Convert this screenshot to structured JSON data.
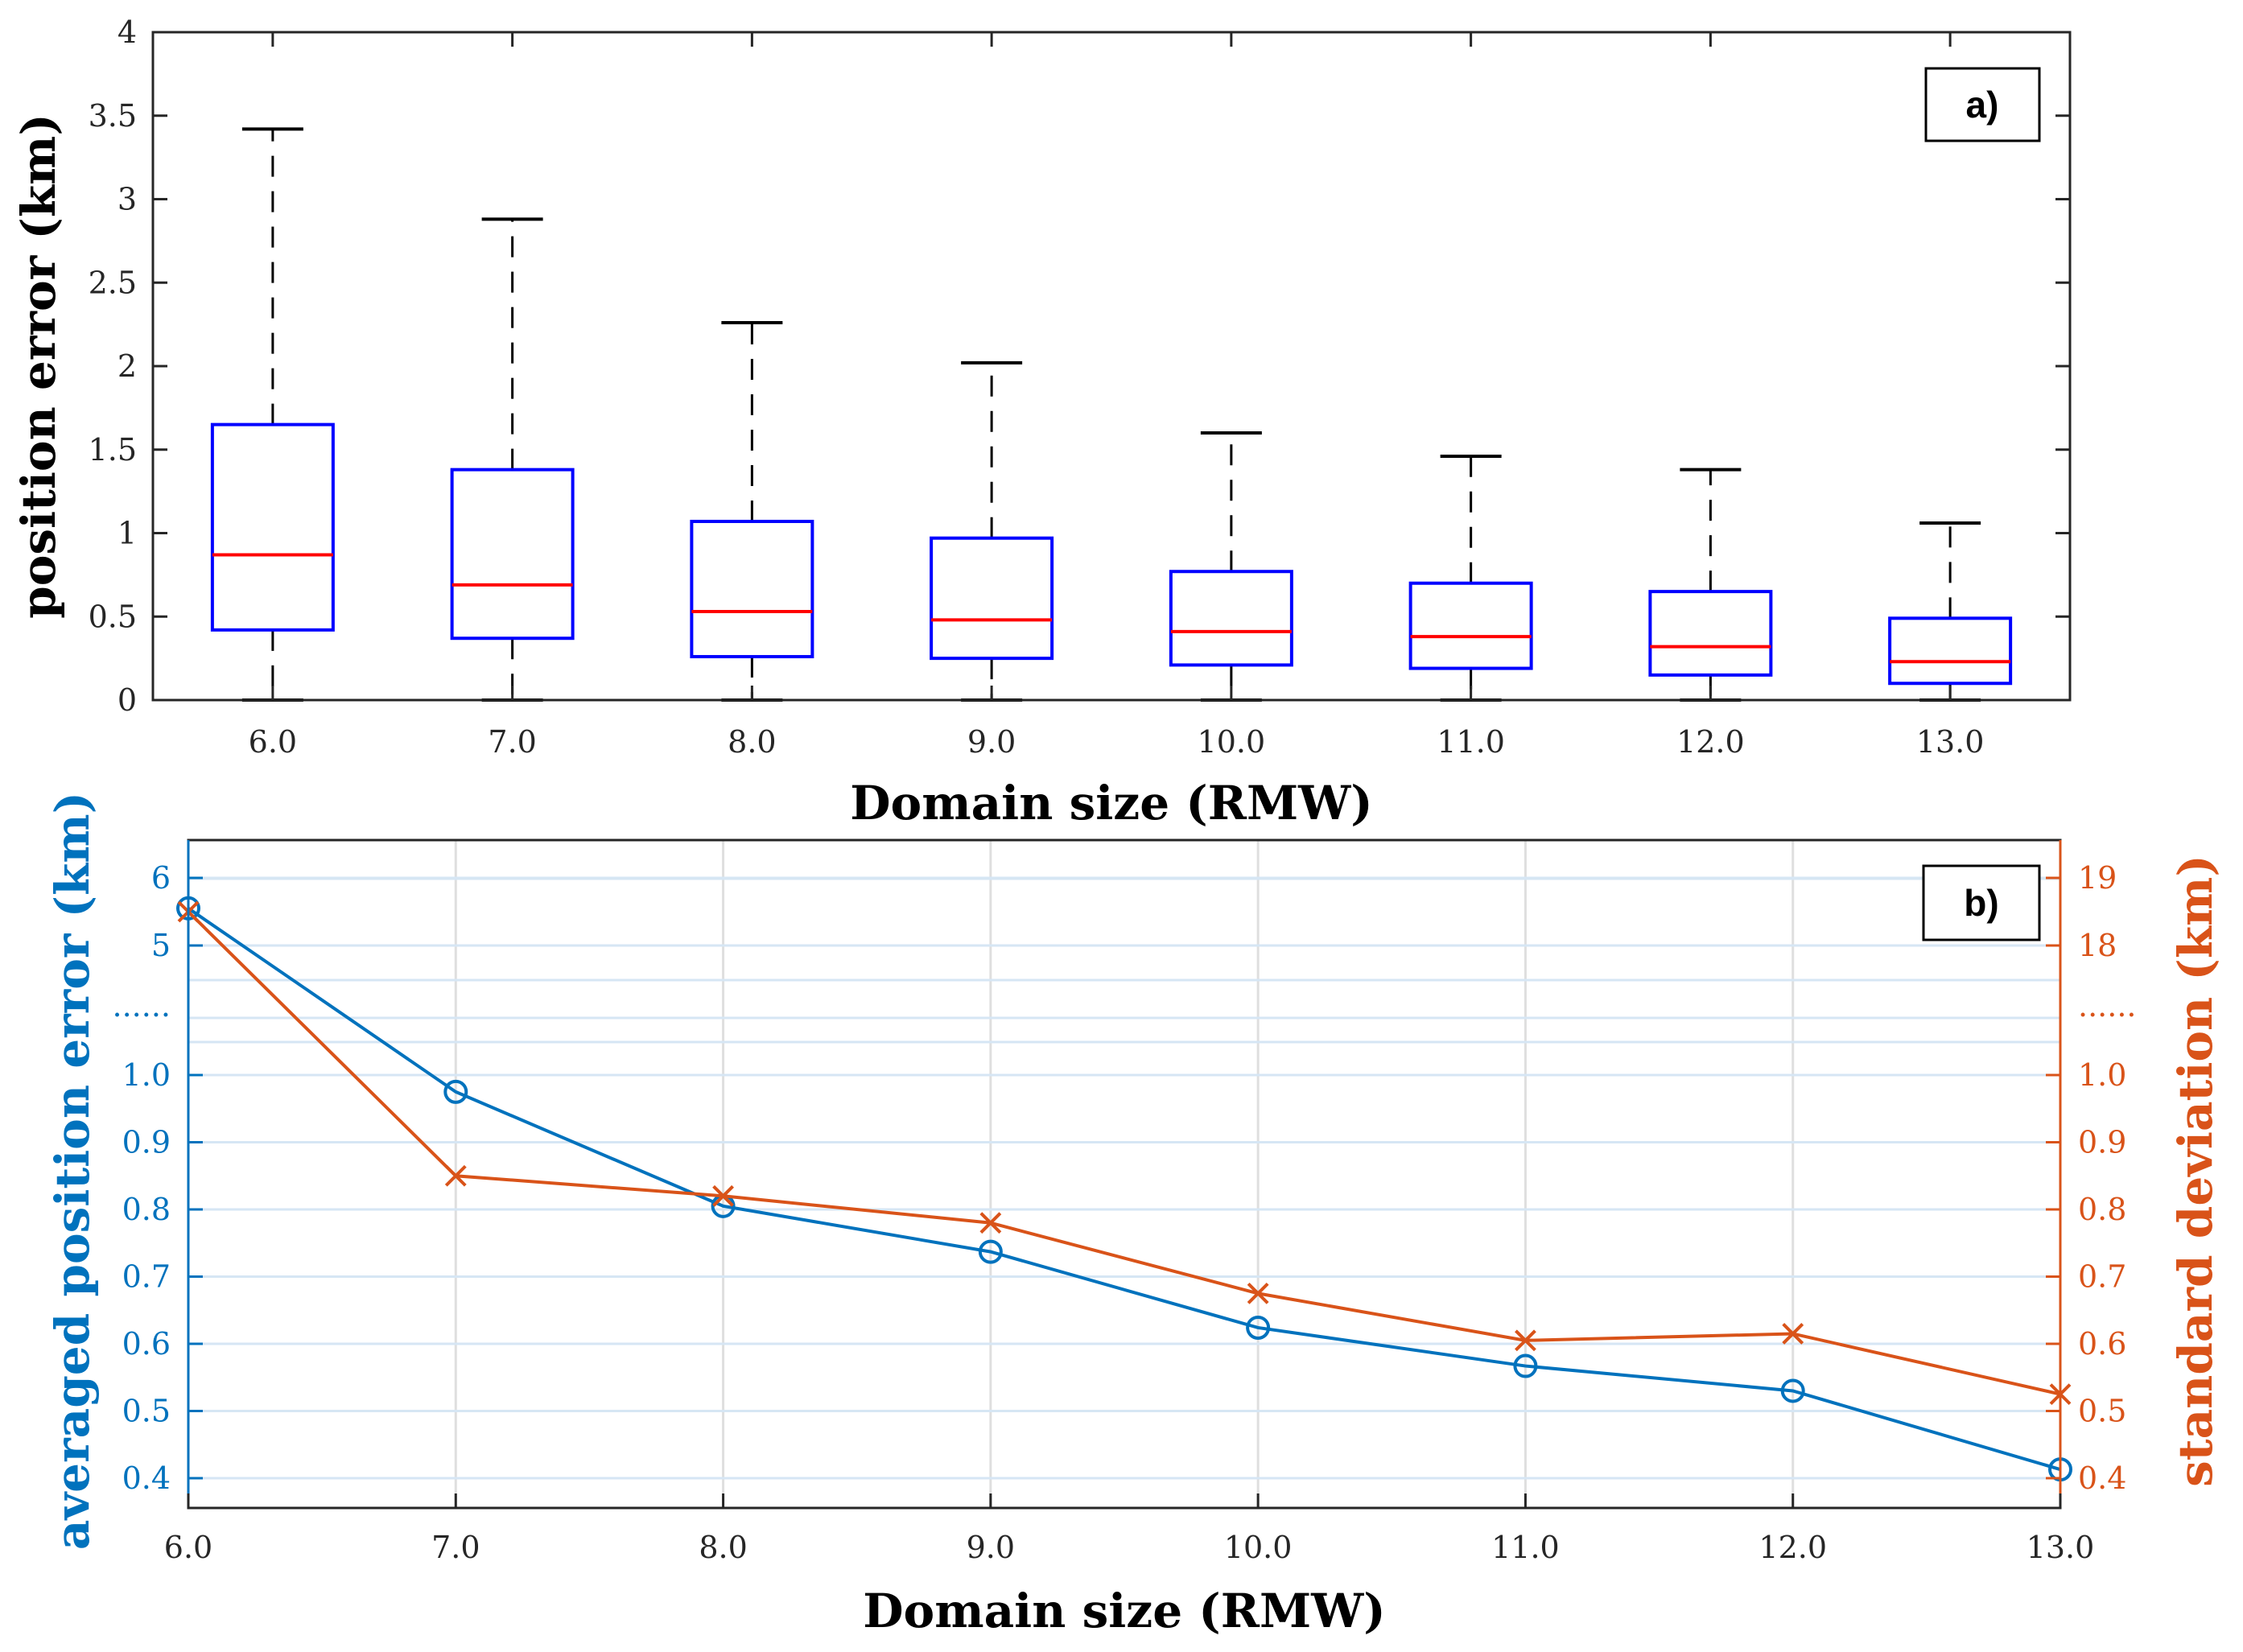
{
  "colors": {
    "axis": "#262626",
    "box": "#0000ff",
    "median": "#ff0000",
    "whisker": "#000000",
    "blue": "#0072bd",
    "orange": "#d95319",
    "grid": "#dfdfdf"
  },
  "chart_data": [
    {
      "type": "box",
      "panel_label": "a)",
      "xlabel": "Domain size (RMW)",
      "ylabel": "position error (km)",
      "categories": [
        "6.0",
        "7.0",
        "8.0",
        "9.0",
        "10.0",
        "11.0",
        "12.0",
        "13.0"
      ],
      "ylim": [
        0,
        4
      ],
      "yticks": [
        "0",
        "0.5",
        "1",
        "1.5",
        "2",
        "2.5",
        "3",
        "3.5",
        "4"
      ],
      "yticks_values": [
        0,
        0.5,
        1,
        1.5,
        2,
        2.5,
        3,
        3.5,
        4
      ],
      "boxes": [
        {
          "min": 0,
          "q1": 0.42,
          "median": 0.87,
          "q3": 1.65,
          "max": 3.42
        },
        {
          "min": 0,
          "q1": 0.37,
          "median": 0.69,
          "q3": 1.38,
          "max": 2.88
        },
        {
          "min": 0,
          "q1": 0.26,
          "median": 0.53,
          "q3": 1.07,
          "max": 2.26
        },
        {
          "min": 0,
          "q1": 0.25,
          "median": 0.48,
          "q3": 0.97,
          "max": 2.02
        },
        {
          "min": 0,
          "q1": 0.21,
          "median": 0.41,
          "q3": 0.77,
          "max": 1.6
        },
        {
          "min": 0,
          "q1": 0.19,
          "median": 0.38,
          "q3": 0.7,
          "max": 1.46
        },
        {
          "min": 0,
          "q1": 0.15,
          "median": 0.32,
          "q3": 0.65,
          "max": 1.38
        },
        {
          "min": 0,
          "q1": 0.1,
          "median": 0.23,
          "q3": 0.49,
          "max": 1.06
        }
      ]
    },
    {
      "type": "line",
      "panel_label": "b)",
      "xlabel": "Domain size (RMW)",
      "ylabel_left": "averaged position error (km)",
      "ylabel_right": "standard deviation (km)",
      "x": [
        6,
        7,
        8,
        9,
        10,
        11,
        12,
        13
      ],
      "xticks": [
        "6.0",
        "7.0",
        "8.0",
        "9.0",
        "10.0",
        "11.0",
        "12.0",
        "13.0"
      ],
      "xlim": [
        6,
        13
      ],
      "yticks_left": [
        "0.4",
        "0.5",
        "0.6",
        "0.7",
        "0.8",
        "0.9",
        "1.0",
        "......",
        "5",
        "6"
      ],
      "yticks_right": [
        "0.4",
        "0.5",
        "0.6",
        "0.7",
        "0.8",
        "0.9",
        "1.0",
        "......",
        "18",
        "19"
      ],
      "axis_break": "broken y-axis between 1.0 and 5 (left) / 1.0 and 18 (right)",
      "series": [
        {
          "name": "averaged position error",
          "axis": "left",
          "marker": "circle",
          "values": [
            5.55,
            0.975,
            0.805,
            0.737,
            0.624,
            0.567,
            0.53,
            0.413
          ]
        },
        {
          "name": "standard deviation",
          "axis": "right",
          "marker": "x",
          "values": [
            18.5,
            0.85,
            0.82,
            0.78,
            0.675,
            0.605,
            0.615,
            0.525
          ]
        }
      ]
    }
  ]
}
